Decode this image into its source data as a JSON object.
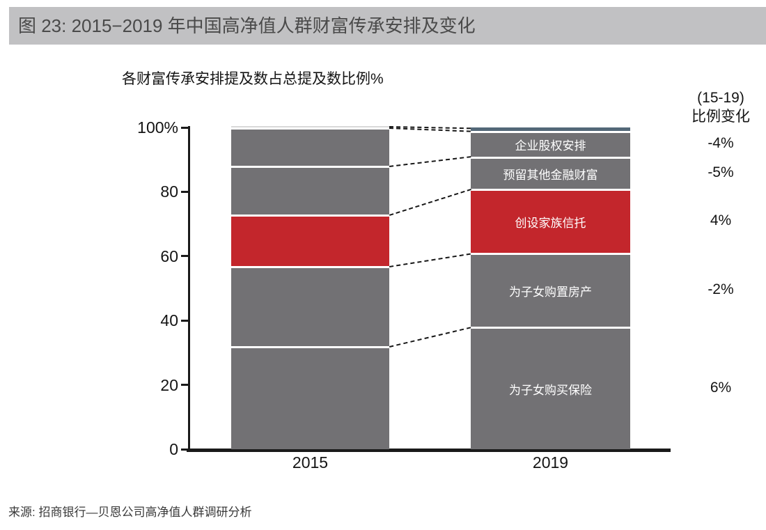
{
  "figure": {
    "title": "图 23: 2015−2019 年中国高净值人群财富传承安排及变化",
    "source": "来源: 招商银行—贝恩公司高净值人群调研分析"
  },
  "chart_data": {
    "type": "bar",
    "subtype": "stacked_100_percent_columns",
    "title": "各财富传承安排提及数占总提及数比例%",
    "right_header": [
      "(15-19)",
      "比例变化"
    ],
    "categories": [
      "2015",
      "2019"
    ],
    "ytick_labels": [
      "100%",
      "80",
      "60",
      "40",
      "20",
      "0"
    ],
    "ytick_values": [
      100,
      80,
      60,
      40,
      20,
      0
    ],
    "ylim": [
      0,
      100
    ],
    "grid": false,
    "legend_position": "labels inside 2019 column, change column at right",
    "series": [
      {
        "name": "为子女购买保险",
        "values": [
          32,
          38
        ],
        "change": "6%",
        "colors": [
          "#727174",
          "#727174"
        ]
      },
      {
        "name": "为子女购置房产",
        "values": [
          25,
          23
        ],
        "change": "-2%",
        "colors": [
          "#727174",
          "#727174"
        ]
      },
      {
        "name": "创设家族信托",
        "values": [
          16,
          20
        ],
        "change": "4%",
        "colors": [
          "#c3262c",
          "#c3262c"
        ]
      },
      {
        "name": "预留其他金融财富",
        "values": [
          15,
          10
        ],
        "change": "-5%",
        "colors": [
          "#727174",
          "#727174"
        ]
      },
      {
        "name": "企业股权安排",
        "values": [
          12,
          8
        ],
        "change": "-4%",
        "colors": [
          "#727174",
          "#727174"
        ]
      },
      {
        "name": "",
        "values": [
          0.5,
          1
        ],
        "change": "",
        "colors": [
          "#d9d9d9",
          "#536878"
        ]
      }
    ],
    "colors": {
      "accent_red": "#c3262c",
      "bar_gray": "#727174",
      "top_strip_2015": "#d9d9d9",
      "top_strip_2019": "#536878",
      "title_bar_bg": "#c1c1c3",
      "axis": "#1a1a1a"
    }
  }
}
